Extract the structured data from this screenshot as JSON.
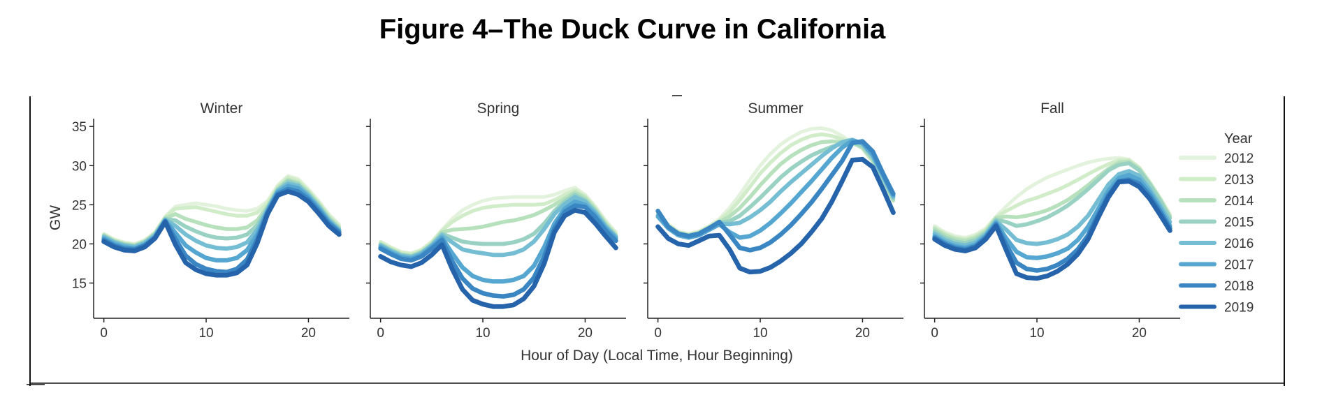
{
  "figure": {
    "title": "Figure 4–The Duck Curve in California"
  },
  "chart_data": {
    "type": "line",
    "xlabel": "Hour of Day (Local Time, Hour Beginning)",
    "ylabel": "GW",
    "xlim": [
      -1,
      24
    ],
    "ylim": [
      10.5,
      36
    ],
    "x_ticks": [
      0,
      10,
      20
    ],
    "y_ticks": [
      15,
      20,
      25,
      30,
      35
    ],
    "grid": false,
    "legend": {
      "title": "Year",
      "placement": "right",
      "entries": [
        "2012",
        "2013",
        "2014",
        "2015",
        "2016",
        "2017",
        "2018",
        "2019"
      ]
    },
    "series_colors": [
      "#e3f2dc",
      "#d1ecc9",
      "#b7e0bc",
      "#99d2c2",
      "#74bdd3",
      "#55a6d1",
      "#3a86c2",
      "#2563ab"
    ],
    "x": [
      0,
      1,
      2,
      3,
      4,
      5,
      6,
      7,
      8,
      9,
      10,
      11,
      12,
      13,
      14,
      15,
      16,
      17,
      18,
      19,
      20,
      21,
      22,
      23
    ],
    "panels": [
      {
        "title": "Winter",
        "series": [
          {
            "name": "2012",
            "values": [
              21.3,
              20.6,
              20.2,
              20.0,
              20.5,
              21.5,
              23.5,
              24.8,
              25.0,
              25.2,
              25.0,
              24.8,
              24.5,
              24.3,
              24.2,
              24.5,
              25.5,
              27.5,
              28.7,
              28.3,
              27.0,
              25.5,
              23.8,
              22.5
            ]
          },
          {
            "name": "2013",
            "values": [
              21.2,
              20.5,
              20.1,
              19.9,
              20.4,
              21.4,
              23.4,
              24.5,
              24.6,
              24.7,
              24.4,
              24.1,
              23.8,
              23.6,
              23.6,
              24.0,
              25.2,
              27.3,
              28.5,
              28.1,
              26.8,
              25.3,
              23.6,
              22.3
            ]
          },
          {
            "name": "2014",
            "values": [
              21.1,
              20.4,
              20.0,
              19.8,
              20.3,
              21.3,
              23.3,
              23.8,
              23.2,
              22.8,
              22.4,
              22.1,
              21.9,
              21.9,
              22.1,
              23.0,
              24.8,
              27.1,
              28.2,
              27.8,
              26.6,
              25.1,
              23.4,
              22.1
            ]
          },
          {
            "name": "2015",
            "values": [
              21.0,
              20.3,
              19.9,
              19.7,
              20.2,
              21.2,
              23.2,
              23.0,
              22.2,
              21.6,
              21.1,
              20.8,
              20.7,
              20.8,
              21.2,
              22.4,
              24.6,
              26.9,
              28.0,
              27.6,
              26.4,
              24.9,
              23.2,
              21.9
            ]
          },
          {
            "name": "2016",
            "values": [
              20.9,
              20.2,
              19.8,
              19.6,
              20.1,
              21.1,
              23.1,
              22.3,
              21.2,
              20.4,
              19.8,
              19.5,
              19.4,
              19.6,
              20.2,
              21.8,
              24.4,
              26.8,
              27.7,
              27.4,
              26.2,
              24.7,
              23.0,
              21.8
            ]
          },
          {
            "name": "2017",
            "values": [
              20.7,
              20.0,
              19.6,
              19.4,
              19.9,
              20.9,
              23.0,
              21.4,
              19.8,
              18.9,
              18.2,
              17.9,
              17.9,
              18.2,
              19.2,
              21.2,
              24.2,
              26.6,
              27.4,
              27.1,
              26.0,
              24.5,
              22.8,
              21.6
            ]
          },
          {
            "name": "2018",
            "values": [
              20.5,
              19.8,
              19.4,
              19.3,
              19.8,
              20.8,
              22.9,
              20.6,
              18.5,
              17.4,
              16.8,
              16.5,
              16.4,
              16.8,
              18.0,
              20.6,
              24.0,
              26.4,
              27.0,
              26.7,
              25.7,
              24.2,
              22.6,
              21.5
            ]
          },
          {
            "name": "2019",
            "values": [
              20.3,
              19.6,
              19.2,
              19.1,
              19.6,
              20.7,
              22.8,
              19.9,
              17.6,
              16.7,
              16.2,
              16.0,
              16.0,
              16.3,
              17.3,
              20.1,
              23.8,
              26.2,
              26.7,
              26.3,
              25.4,
              23.9,
              22.3,
              21.2
            ]
          }
        ]
      },
      {
        "title": "Spring",
        "series": [
          {
            "name": "2012",
            "values": [
              20.3,
              19.6,
              19.0,
              18.8,
              19.3,
              20.3,
              21.8,
              23.2,
              24.3,
              25.0,
              25.5,
              25.8,
              25.9,
              26.0,
              26.0,
              26.0,
              26.0,
              26.3,
              26.8,
              27.2,
              26.3,
              24.8,
              23.0,
              21.5
            ]
          },
          {
            "name": "2013",
            "values": [
              20.2,
              19.5,
              18.9,
              18.7,
              19.2,
              20.2,
              21.7,
              22.8,
              23.6,
              24.2,
              24.6,
              24.8,
              24.9,
              25.0,
              25.0,
              25.0,
              25.1,
              25.6,
              26.3,
              26.9,
              26.1,
              24.6,
              22.8,
              21.3
            ]
          },
          {
            "name": "2014",
            "values": [
              20.0,
              19.3,
              18.7,
              18.5,
              19.0,
              20.0,
              21.5,
              21.8,
              21.9,
              22.0,
              22.2,
              22.5,
              22.8,
              23.0,
              23.3,
              23.7,
              24.3,
              25.0,
              25.8,
              26.6,
              25.9,
              24.4,
              22.6,
              21.1
            ]
          },
          {
            "name": "2015",
            "values": [
              19.9,
              19.2,
              18.6,
              18.4,
              18.9,
              19.9,
              21.3,
              20.8,
              20.3,
              20.1,
              20.0,
              20.0,
              20.0,
              20.2,
              20.6,
              21.3,
              22.6,
              24.2,
              25.4,
              26.3,
              25.6,
              24.2,
              22.4,
              21.0
            ]
          },
          {
            "name": "2016",
            "values": [
              19.8,
              19.1,
              18.5,
              18.3,
              18.8,
              19.8,
              21.1,
              20.2,
              19.3,
              19.0,
              18.8,
              18.6,
              18.6,
              18.8,
              19.3,
              20.3,
              21.9,
              23.8,
              25.1,
              26.0,
              25.4,
              24.0,
              22.2,
              20.9
            ]
          },
          {
            "name": "2017",
            "values": [
              19.6,
              18.9,
              18.3,
              18.1,
              18.6,
              19.6,
              20.8,
              18.8,
              17.0,
              15.9,
              15.4,
              15.2,
              15.2,
              15.4,
              15.9,
              17.2,
              19.6,
              22.6,
              24.5,
              25.4,
              25.0,
              23.7,
              22.0,
              20.7
            ]
          },
          {
            "name": "2018",
            "values": [
              19.4,
              18.7,
              18.1,
              17.9,
              18.4,
              19.4,
              20.5,
              17.8,
              15.6,
              14.3,
              13.7,
              13.4,
              13.3,
              13.5,
              14.2,
              15.7,
              18.4,
              22.0,
              24.1,
              24.9,
              24.7,
              23.4,
              21.7,
              20.4
            ]
          },
          {
            "name": "2019",
            "values": [
              18.4,
              17.7,
              17.3,
              17.1,
              17.6,
              18.6,
              19.9,
              16.8,
              14.2,
              12.8,
              12.3,
              12.0,
              12.0,
              12.2,
              13.0,
              14.6,
              17.5,
              21.5,
              23.6,
              24.3,
              24.0,
              22.6,
              21.0,
              19.5
            ]
          }
        ]
      },
      {
        "title": "Summer",
        "series": [
          {
            "name": "2012",
            "values": [
              24.0,
              22.5,
              21.6,
              21.3,
              21.6,
              22.3,
              23.2,
              24.6,
              26.3,
              28.2,
              30.0,
              31.5,
              32.7,
              33.6,
              34.3,
              34.7,
              34.8,
              34.5,
              33.8,
              33.0,
              32.2,
              30.5,
              28.0,
              25.5
            ]
          },
          {
            "name": "2013",
            "values": [
              23.9,
              22.4,
              21.5,
              21.2,
              21.5,
              22.2,
              23.0,
              24.1,
              25.6,
              27.3,
              29.0,
              30.4,
              31.6,
              32.6,
              33.3,
              33.8,
              34.0,
              33.8,
              33.4,
              33.0,
              32.2,
              30.5,
              28.0,
              25.5
            ]
          },
          {
            "name": "2014",
            "values": [
              23.8,
              22.3,
              21.4,
              21.1,
              21.4,
              22.1,
              22.8,
              23.5,
              24.6,
              26.0,
              27.5,
              28.9,
              30.2,
              31.2,
              32.0,
              32.6,
              33.0,
              33.1,
              33.0,
              32.9,
              32.3,
              30.7,
              28.2,
              25.6
            ]
          },
          {
            "name": "2015",
            "values": [
              23.7,
              22.2,
              21.3,
              21.0,
              21.3,
              22.0,
              22.7,
              22.9,
              23.6,
              24.7,
              25.9,
              27.2,
              28.5,
              29.6,
              30.5,
              31.3,
              31.9,
              32.4,
              32.8,
              33.0,
              32.5,
              30.9,
              28.4,
              25.8
            ]
          },
          {
            "name": "2016",
            "values": [
              23.6,
              22.1,
              21.2,
              20.9,
              21.2,
              21.9,
              22.6,
              22.5,
              22.7,
              23.4,
              24.3,
              25.4,
              26.7,
              27.9,
              29.0,
              30.1,
              31.2,
              32.2,
              33.0,
              33.3,
              32.8,
              31.2,
              28.6,
              26.0
            ]
          },
          {
            "name": "2017",
            "values": [
              23.5,
              22.0,
              21.1,
              20.8,
              21.1,
              21.8,
              22.5,
              21.5,
              20.8,
              21.0,
              21.7,
              22.7,
              23.9,
              25.2,
              26.6,
              28.0,
              29.5,
              31.0,
              32.3,
              33.2,
              32.9,
              31.4,
              28.8,
              26.2
            ]
          },
          {
            "name": "2018",
            "values": [
              24.2,
              22.2,
              21.3,
              21.0,
              21.3,
              22.0,
              22.8,
              21.2,
              19.5,
              19.2,
              19.5,
              20.2,
              21.2,
              22.4,
              23.8,
              25.3,
              27.0,
              28.8,
              30.6,
              32.9,
              33.1,
              31.8,
              29.0,
              26.4
            ]
          },
          {
            "name": "2019",
            "values": [
              22.2,
              20.7,
              20.0,
              19.8,
              20.4,
              21.0,
              21.1,
              19.3,
              16.9,
              16.4,
              16.5,
              17.0,
              17.8,
              18.8,
              20.0,
              21.5,
              23.2,
              25.4,
              28.0,
              30.7,
              30.8,
              29.8,
              27.0,
              24.0
            ]
          }
        ]
      },
      {
        "title": "Fall",
        "series": [
          {
            "name": "2012",
            "values": [
              22.3,
              21.5,
              21.0,
              20.8,
              21.2,
              22.0,
              23.5,
              24.8,
              26.0,
              27.0,
              27.8,
              28.5,
              29.0,
              29.5,
              30.0,
              30.4,
              30.7,
              30.9,
              31.0,
              30.8,
              29.8,
              28.0,
              26.0,
              23.8
            ]
          },
          {
            "name": "2013",
            "values": [
              22.1,
              21.3,
              20.8,
              20.6,
              21.0,
              21.8,
              23.4,
              24.2,
              24.9,
              25.5,
              25.9,
              26.4,
              26.9,
              27.5,
              28.2,
              28.9,
              29.6,
              30.2,
              30.7,
              30.7,
              29.7,
              27.9,
              25.9,
              23.6
            ]
          },
          {
            "name": "2014",
            "values": [
              21.9,
              21.1,
              20.6,
              20.4,
              20.8,
              21.6,
              23.3,
              23.5,
              23.4,
              23.6,
              23.9,
              24.3,
              24.9,
              25.6,
              26.5,
              27.5,
              28.6,
              29.6,
              30.4,
              30.5,
              29.6,
              27.8,
              25.8,
              23.5
            ]
          },
          {
            "name": "2015",
            "values": [
              21.6,
              20.8,
              20.3,
              20.1,
              20.5,
              21.4,
              23.1,
              22.8,
              22.3,
              22.5,
              22.9,
              23.4,
              24.1,
              24.9,
              25.9,
              27.0,
              28.2,
              29.4,
              30.1,
              30.3,
              29.4,
              27.6,
              25.6,
              23.3
            ]
          },
          {
            "name": "2016",
            "values": [
              21.3,
              20.5,
              20.0,
              19.8,
              20.2,
              21.2,
              22.9,
              21.8,
              20.5,
              20.1,
              20.0,
              20.2,
              20.6,
              21.2,
              22.2,
              23.6,
              25.6,
              27.6,
              28.9,
              29.3,
              28.7,
              27.0,
              25.0,
              22.8
            ]
          },
          {
            "name": "2017",
            "values": [
              21.0,
              20.2,
              19.7,
              19.5,
              19.9,
              21.0,
              22.7,
              20.7,
              19.0,
              18.3,
              18.2,
              18.4,
              18.8,
              19.4,
              20.5,
              22.2,
              24.5,
              26.8,
              28.4,
              28.8,
              28.2,
              26.6,
              24.6,
              22.3
            ]
          },
          {
            "name": "2018",
            "values": [
              20.8,
              20.0,
              19.5,
              19.3,
              19.7,
              20.8,
              22.5,
              19.9,
              17.6,
              16.8,
              16.6,
              16.8,
              17.3,
              18.1,
              19.3,
              21.1,
              23.8,
              26.3,
              28.0,
              28.2,
              27.7,
              26.2,
              24.2,
              22.0
            ]
          },
          {
            "name": "2019",
            "values": [
              20.6,
              19.8,
              19.3,
              19.1,
              19.5,
              20.6,
              22.3,
              19.2,
              16.2,
              15.7,
              15.6,
              15.9,
              16.5,
              17.4,
              18.7,
              20.6,
              23.4,
              26.0,
              27.9,
              28.0,
              27.3,
              25.8,
              23.8,
              21.7
            ]
          }
        ]
      }
    ]
  }
}
